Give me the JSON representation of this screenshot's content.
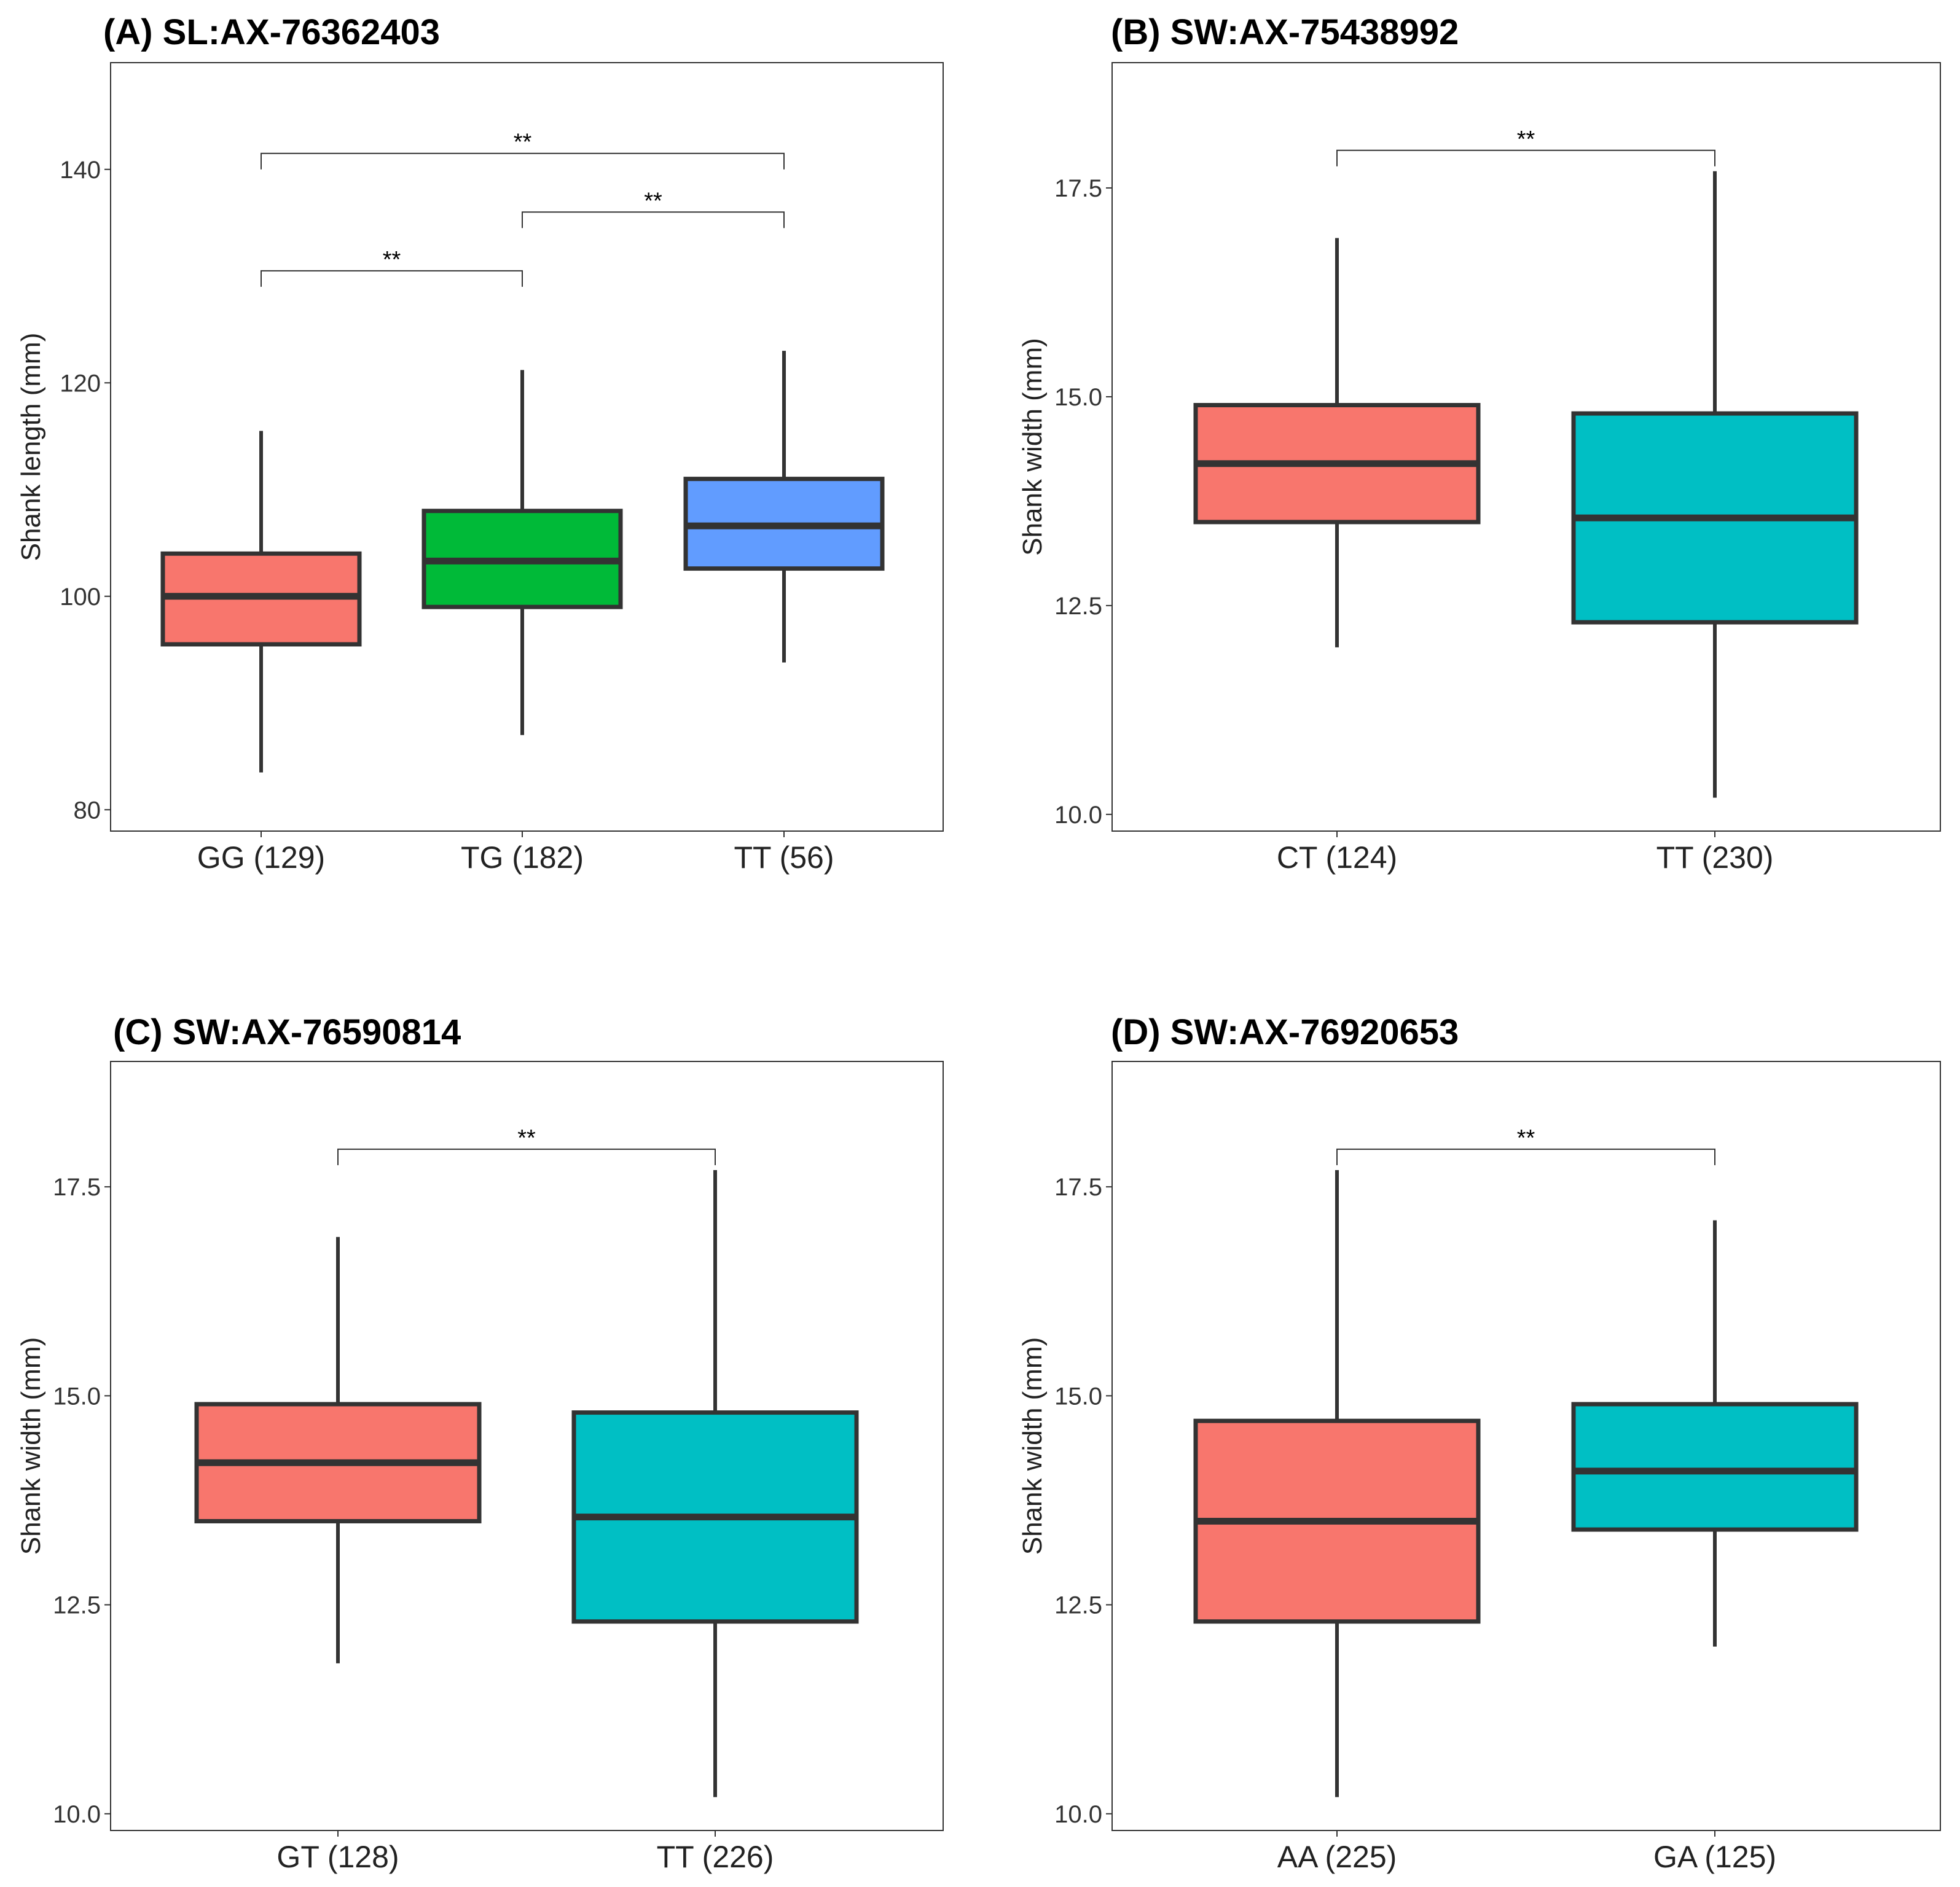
{
  "chart_data": [
    {
      "type": "box",
      "title": "(A) SL:AX-76362403",
      "xlabel": "",
      "ylabel": "Shank length (mm)",
      "ylim": [
        78,
        150
      ],
      "yticks": [
        "80",
        "100",
        "120",
        "140"
      ],
      "categories": [
        "GG (129)",
        "TG (182)",
        "TT (56)"
      ],
      "colors": [
        "#F8766D",
        "#00BA38",
        "#619CFF"
      ],
      "boxes": [
        {
          "min": 83.5,
          "q1": 95.5,
          "median": 100.0,
          "q3": 104.0,
          "max": 115.5
        },
        {
          "min": 87.0,
          "q1": 99.0,
          "median": 103.3,
          "q3": 108.0,
          "max": 121.2
        },
        {
          "min": 93.8,
          "q1": 102.6,
          "median": 106.6,
          "q3": 111.0,
          "max": 123.0
        }
      ],
      "significance": [
        {
          "from": 0,
          "to": 2,
          "y": 141.5,
          "label": "**"
        },
        {
          "from": 1,
          "to": 2,
          "y": 136.0,
          "label": "**"
        },
        {
          "from": 0,
          "to": 1,
          "y": 130.5,
          "label": "**"
        }
      ]
    },
    {
      "type": "box",
      "title": "(B) SW:AX-75438992",
      "xlabel": "",
      "ylabel": "Shank width (mm)",
      "ylim": [
        9.8,
        19.0
      ],
      "yticks": [
        "10.0",
        "12.5",
        "15.0",
        "17.5"
      ],
      "categories": [
        "CT (124)",
        "TT (230)"
      ],
      "colors": [
        "#F8766D",
        "#00BFC4"
      ],
      "boxes": [
        {
          "min": 12.0,
          "q1": 13.5,
          "median": 14.2,
          "q3": 14.9,
          "max": 16.9
        },
        {
          "min": 10.2,
          "q1": 12.3,
          "median": 13.55,
          "q3": 14.8,
          "max": 17.7
        }
      ],
      "significance": [
        {
          "from": 0,
          "to": 1,
          "y": 17.95,
          "label": "**"
        }
      ]
    },
    {
      "type": "box",
      "title": "(C) SW:AX-76590814",
      "xlabel": "",
      "ylabel": "Shank width (mm)",
      "ylim": [
        9.8,
        19.0
      ],
      "yticks": [
        "10.0",
        "12.5",
        "15.0",
        "17.5"
      ],
      "categories": [
        "GT (128)",
        "TT (226)"
      ],
      "colors": [
        "#F8766D",
        "#00BFC4"
      ],
      "boxes": [
        {
          "min": 11.8,
          "q1": 13.5,
          "median": 14.2,
          "q3": 14.9,
          "max": 16.9
        },
        {
          "min": 10.2,
          "q1": 12.3,
          "median": 13.55,
          "q3": 14.8,
          "max": 17.7
        }
      ],
      "significance": [
        {
          "from": 0,
          "to": 1,
          "y": 17.95,
          "label": "**"
        }
      ]
    },
    {
      "type": "box",
      "title": "(D) SW:AX-76920653",
      "xlabel": "",
      "ylabel": "Shank width (mm)",
      "ylim": [
        9.8,
        19.0
      ],
      "yticks": [
        "10.0",
        "12.5",
        "15.0",
        "17.5"
      ],
      "categories": [
        "AA (225)",
        "GA (125)"
      ],
      "colors": [
        "#F8766D",
        "#00BFC4"
      ],
      "boxes": [
        {
          "min": 10.2,
          "q1": 12.3,
          "median": 13.5,
          "q3": 14.7,
          "max": 17.7
        },
        {
          "min": 12.0,
          "q1": 13.4,
          "median": 14.1,
          "q3": 14.9,
          "max": 17.1
        }
      ],
      "significance": [
        {
          "from": 0,
          "to": 1,
          "y": 17.95,
          "label": "**"
        }
      ]
    }
  ]
}
